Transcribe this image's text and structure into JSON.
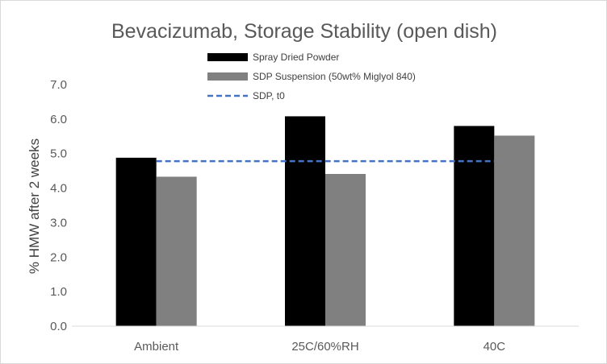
{
  "chart_data": {
    "type": "bar",
    "title": "Bevacizumab, Storage Stability (open dish)",
    "xlabel": "",
    "ylabel": "% HMW after 2 weeks",
    "ylim": [
      0,
      7
    ],
    "yticks": [
      "0.0",
      "1.0",
      "2.0",
      "3.0",
      "4.0",
      "5.0",
      "6.0",
      "7.0"
    ],
    "categories": [
      "Ambient",
      "25C/60%RH",
      "40C"
    ],
    "series": [
      {
        "name": "Spray Dried Powder",
        "values": [
          4.88,
          6.08,
          5.8
        ],
        "color": "#000000"
      },
      {
        "name": "SDP Suspension (50wt% Miglyol 840)",
        "values": [
          4.33,
          4.41,
          5.52
        ],
        "color": "#808080"
      }
    ],
    "reference_line": {
      "name": "SDP, t0",
      "value": 4.78,
      "color": "#4472c4",
      "style": "dashed"
    },
    "grid": false,
    "legend_position": "top"
  }
}
